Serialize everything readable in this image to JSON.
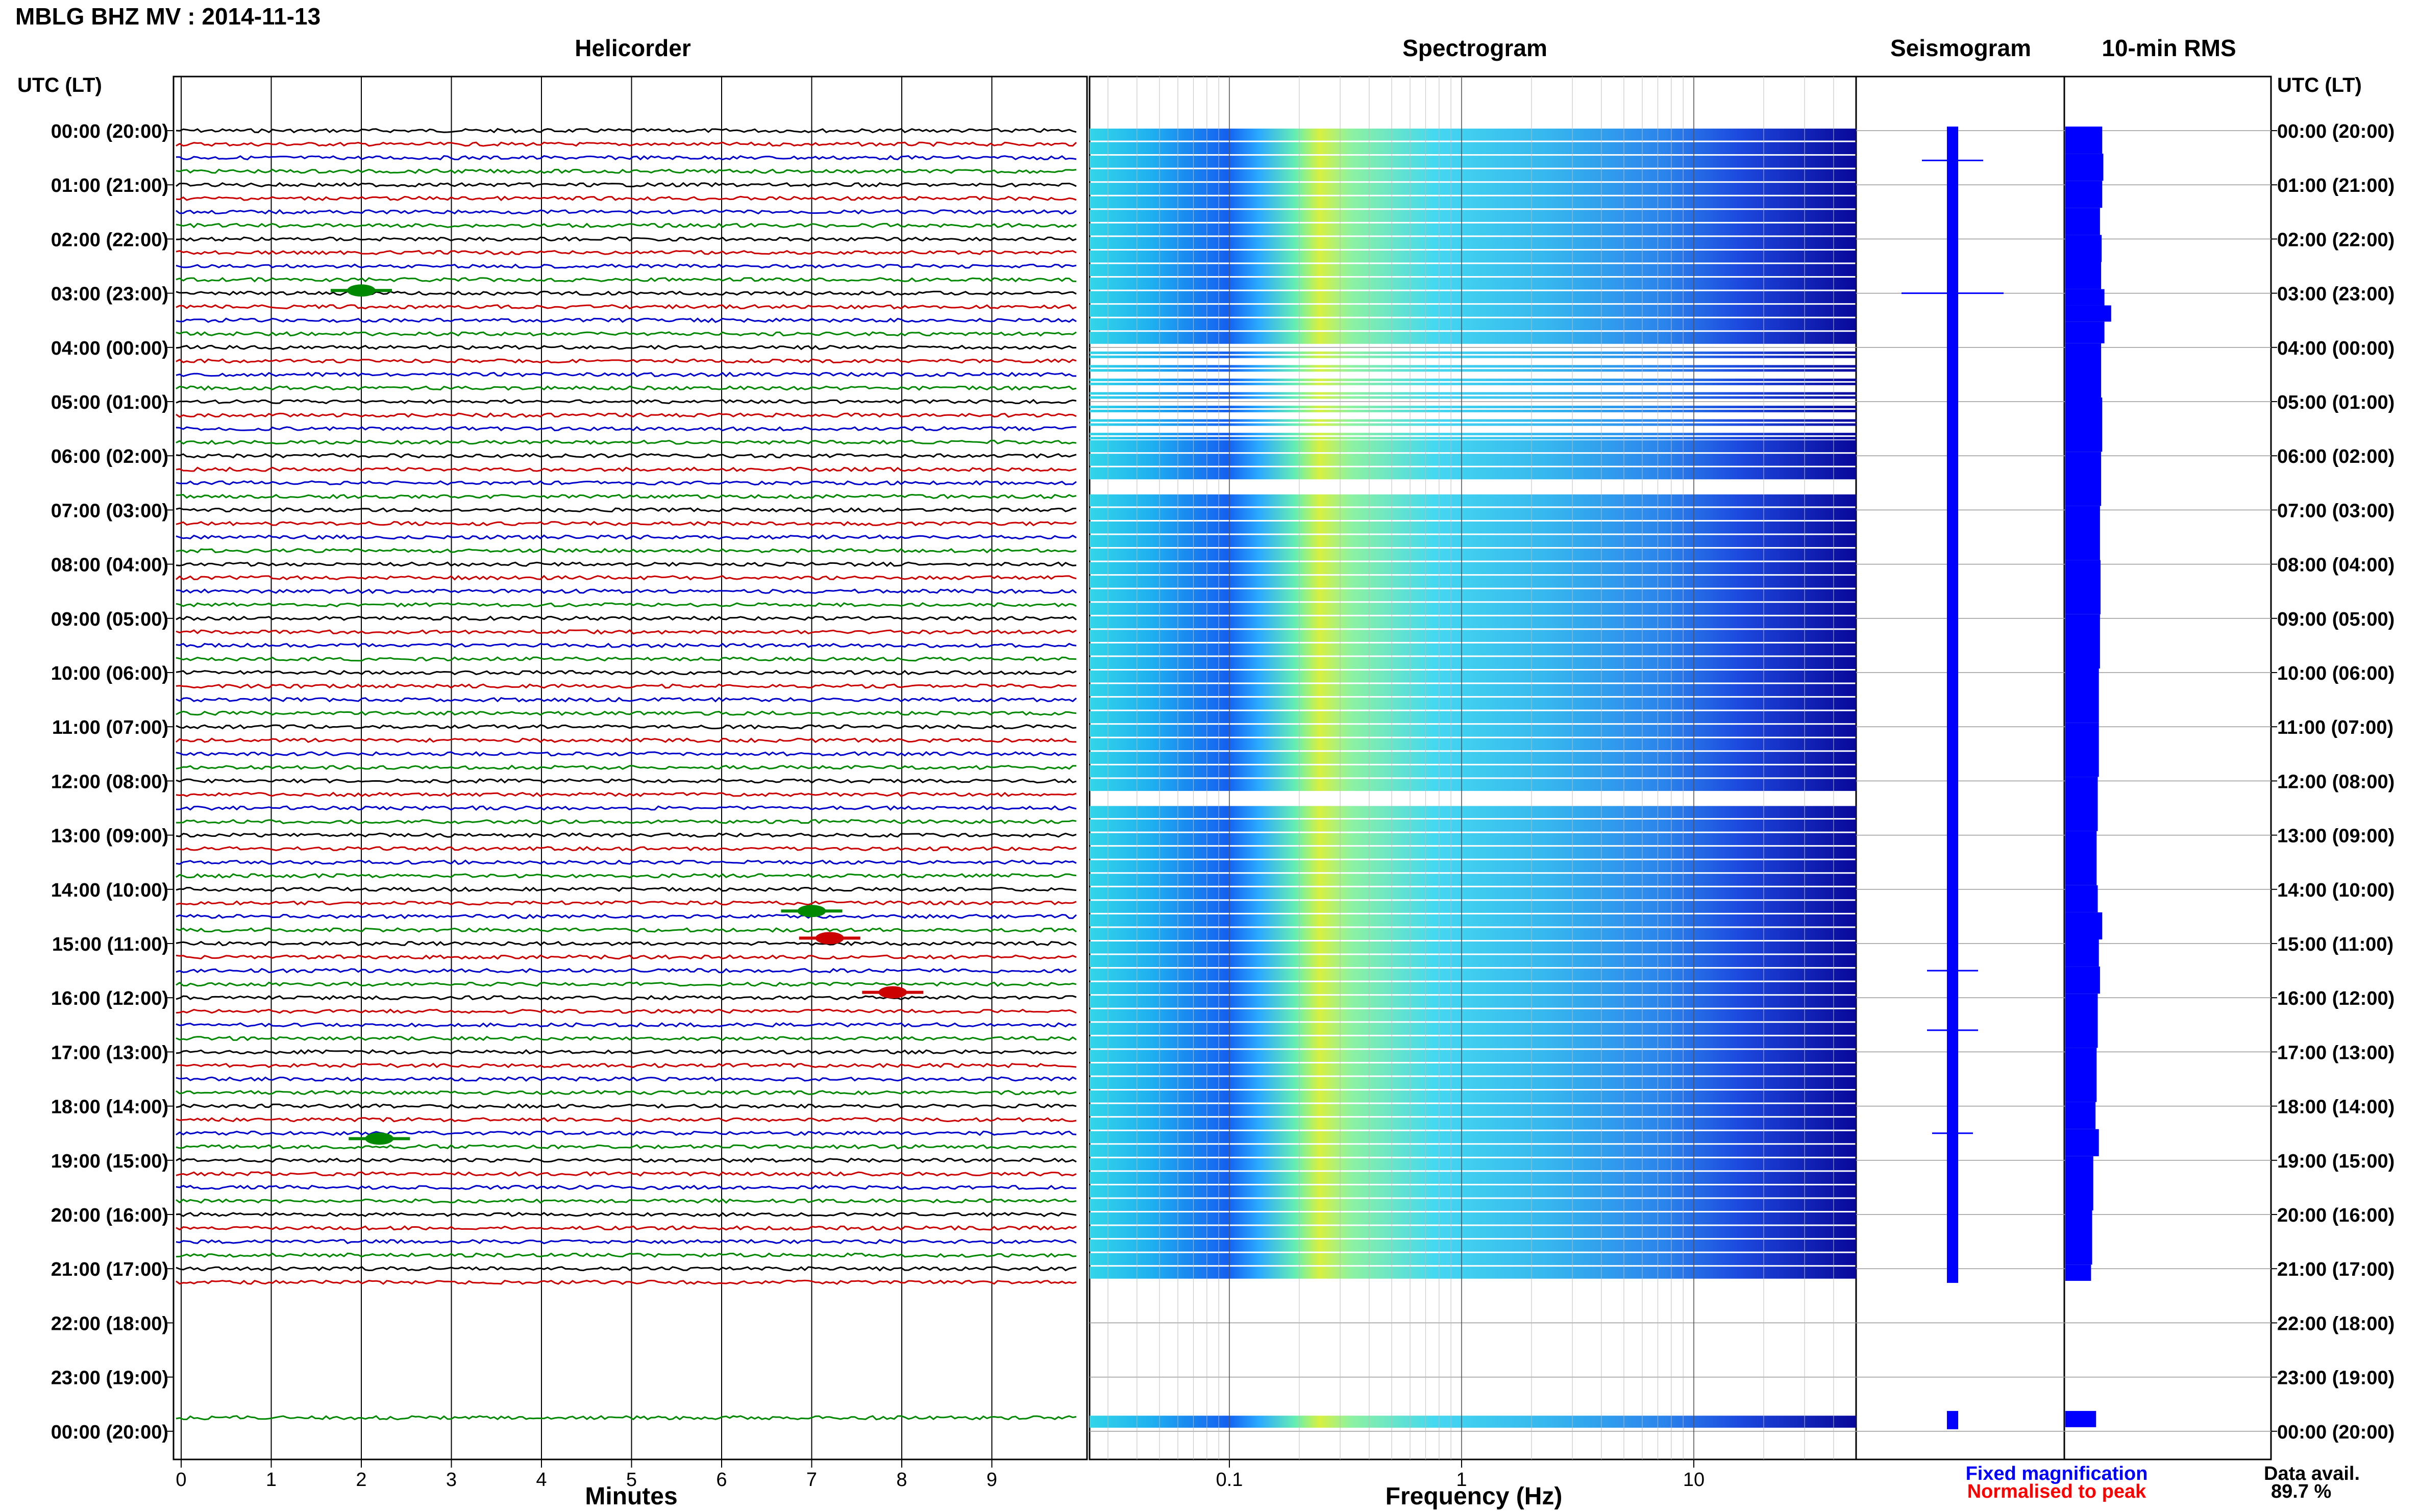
{
  "header": {
    "title": "MBLG BHZ MV : 2014-11-13",
    "utc_lt_left": "UTC (LT)",
    "utc_lt_right": "UTC (LT)"
  },
  "panels": {
    "helicorder": "Helicorder",
    "spectrogram": "Spectrogram",
    "seismogram": "Seismogram",
    "rms": "10-min RMS"
  },
  "axes": {
    "helicorder_xlabel": "Minutes",
    "spectrogram_xlabel": "Frequency (Hz)",
    "minute_ticks": [
      "0",
      "1",
      "2",
      "3",
      "4",
      "5",
      "6",
      "7",
      "8",
      "9"
    ],
    "freq_ticks": [
      "0.1",
      "1",
      "10"
    ]
  },
  "legend": {
    "fixed": "Fixed magnification",
    "normalised": "Normalised to peak",
    "fixed_color": "#0000ff",
    "normalised_color": "#ff0000"
  },
  "data_avail": {
    "label": "Data avail.",
    "value": "89.7 %"
  },
  "chart_data": {
    "type": "heatmap",
    "title": "MBLG BHZ MV : 2014-11-13",
    "time_labels": [
      "00:00 (20:00)",
      "01:00 (21:00)",
      "02:00 (22:00)",
      "03:00 (23:00)",
      "04:00 (00:00)",
      "05:00 (01:00)",
      "06:00 (02:00)",
      "07:00 (03:00)",
      "08:00 (04:00)",
      "09:00 (05:00)",
      "10:00 (06:00)",
      "11:00 (07:00)",
      "12:00 (08:00)",
      "13:00 (09:00)",
      "14:00 (10:00)",
      "15:00 (11:00)",
      "16:00 (12:00)",
      "17:00 (13:00)",
      "18:00 (14:00)",
      "19:00 (15:00)",
      "20:00 (16:00)",
      "21:00 (17:00)",
      "22:00 (18:00)",
      "23:00 (19:00)",
      "00:00 (20:00)"
    ],
    "helicorder": {
      "x_range_minutes": [
        0,
        10
      ],
      "line_colors": [
        "#000000",
        "#cc0000",
        "#0000cc",
        "#008800"
      ],
      "data_gaps_hours": [
        [
          21.3,
          23.6
        ]
      ],
      "events": [
        {
          "hour": 2.95,
          "minute": 2.0,
          "color": "#008800"
        },
        {
          "hour": 14.4,
          "minute": 7.0,
          "color": "#008800"
        },
        {
          "hour": 14.9,
          "minute": 7.2,
          "color": "#cc0000"
        },
        {
          "hour": 15.9,
          "minute": 7.9,
          "color": "#cc0000"
        },
        {
          "hour": 18.6,
          "minute": 2.2,
          "color": "#008800"
        }
      ]
    },
    "spectrogram": {
      "frequency_range_hz": [
        0.025,
        50
      ],
      "peak_band_hz": [
        0.2,
        0.3
      ],
      "colors": [
        "#00008b",
        "#0000ff",
        "#00bfff",
        "#00ffff",
        "#7fff7f",
        "#ffff00"
      ],
      "data_hours": [
        [
          0,
          4
        ],
        [
          5.6,
          6.5
        ],
        [
          6.65,
          7.2
        ],
        [
          7.3,
          12.3
        ],
        [
          12.5,
          21.3
        ],
        [
          23.7,
          24
        ]
      ],
      "sparse_hours": [
        [
          4,
          5.6
        ],
        [
          8.0,
          9.2
        ],
        [
          10.0,
          10.5
        ]
      ]
    },
    "seismogram": {
      "color": "#0000ff",
      "data_hours": [
        [
          0,
          21.3
        ],
        [
          23.7,
          24
        ]
      ]
    },
    "rms": {
      "type": "bar",
      "color": "#0000ff",
      "hours": [
        0,
        0.5,
        1,
        1.5,
        2,
        2.5,
        3,
        3.3,
        3.6,
        4,
        5,
        6,
        7,
        8,
        9,
        10,
        11,
        12,
        13,
        14,
        14.5,
        15,
        15.5,
        16,
        17,
        18,
        18.5,
        19,
        20,
        21,
        23.7
      ],
      "values": [
        0.66,
        0.68,
        0.66,
        0.62,
        0.65,
        0.64,
        0.7,
        0.82,
        0.7,
        0.64,
        0.66,
        0.64,
        0.62,
        0.63,
        0.62,
        0.6,
        0.6,
        0.58,
        0.56,
        0.58,
        0.66,
        0.6,
        0.62,
        0.58,
        0.56,
        0.54,
        0.6,
        0.5,
        0.48,
        0.46,
        0.55
      ]
    }
  }
}
